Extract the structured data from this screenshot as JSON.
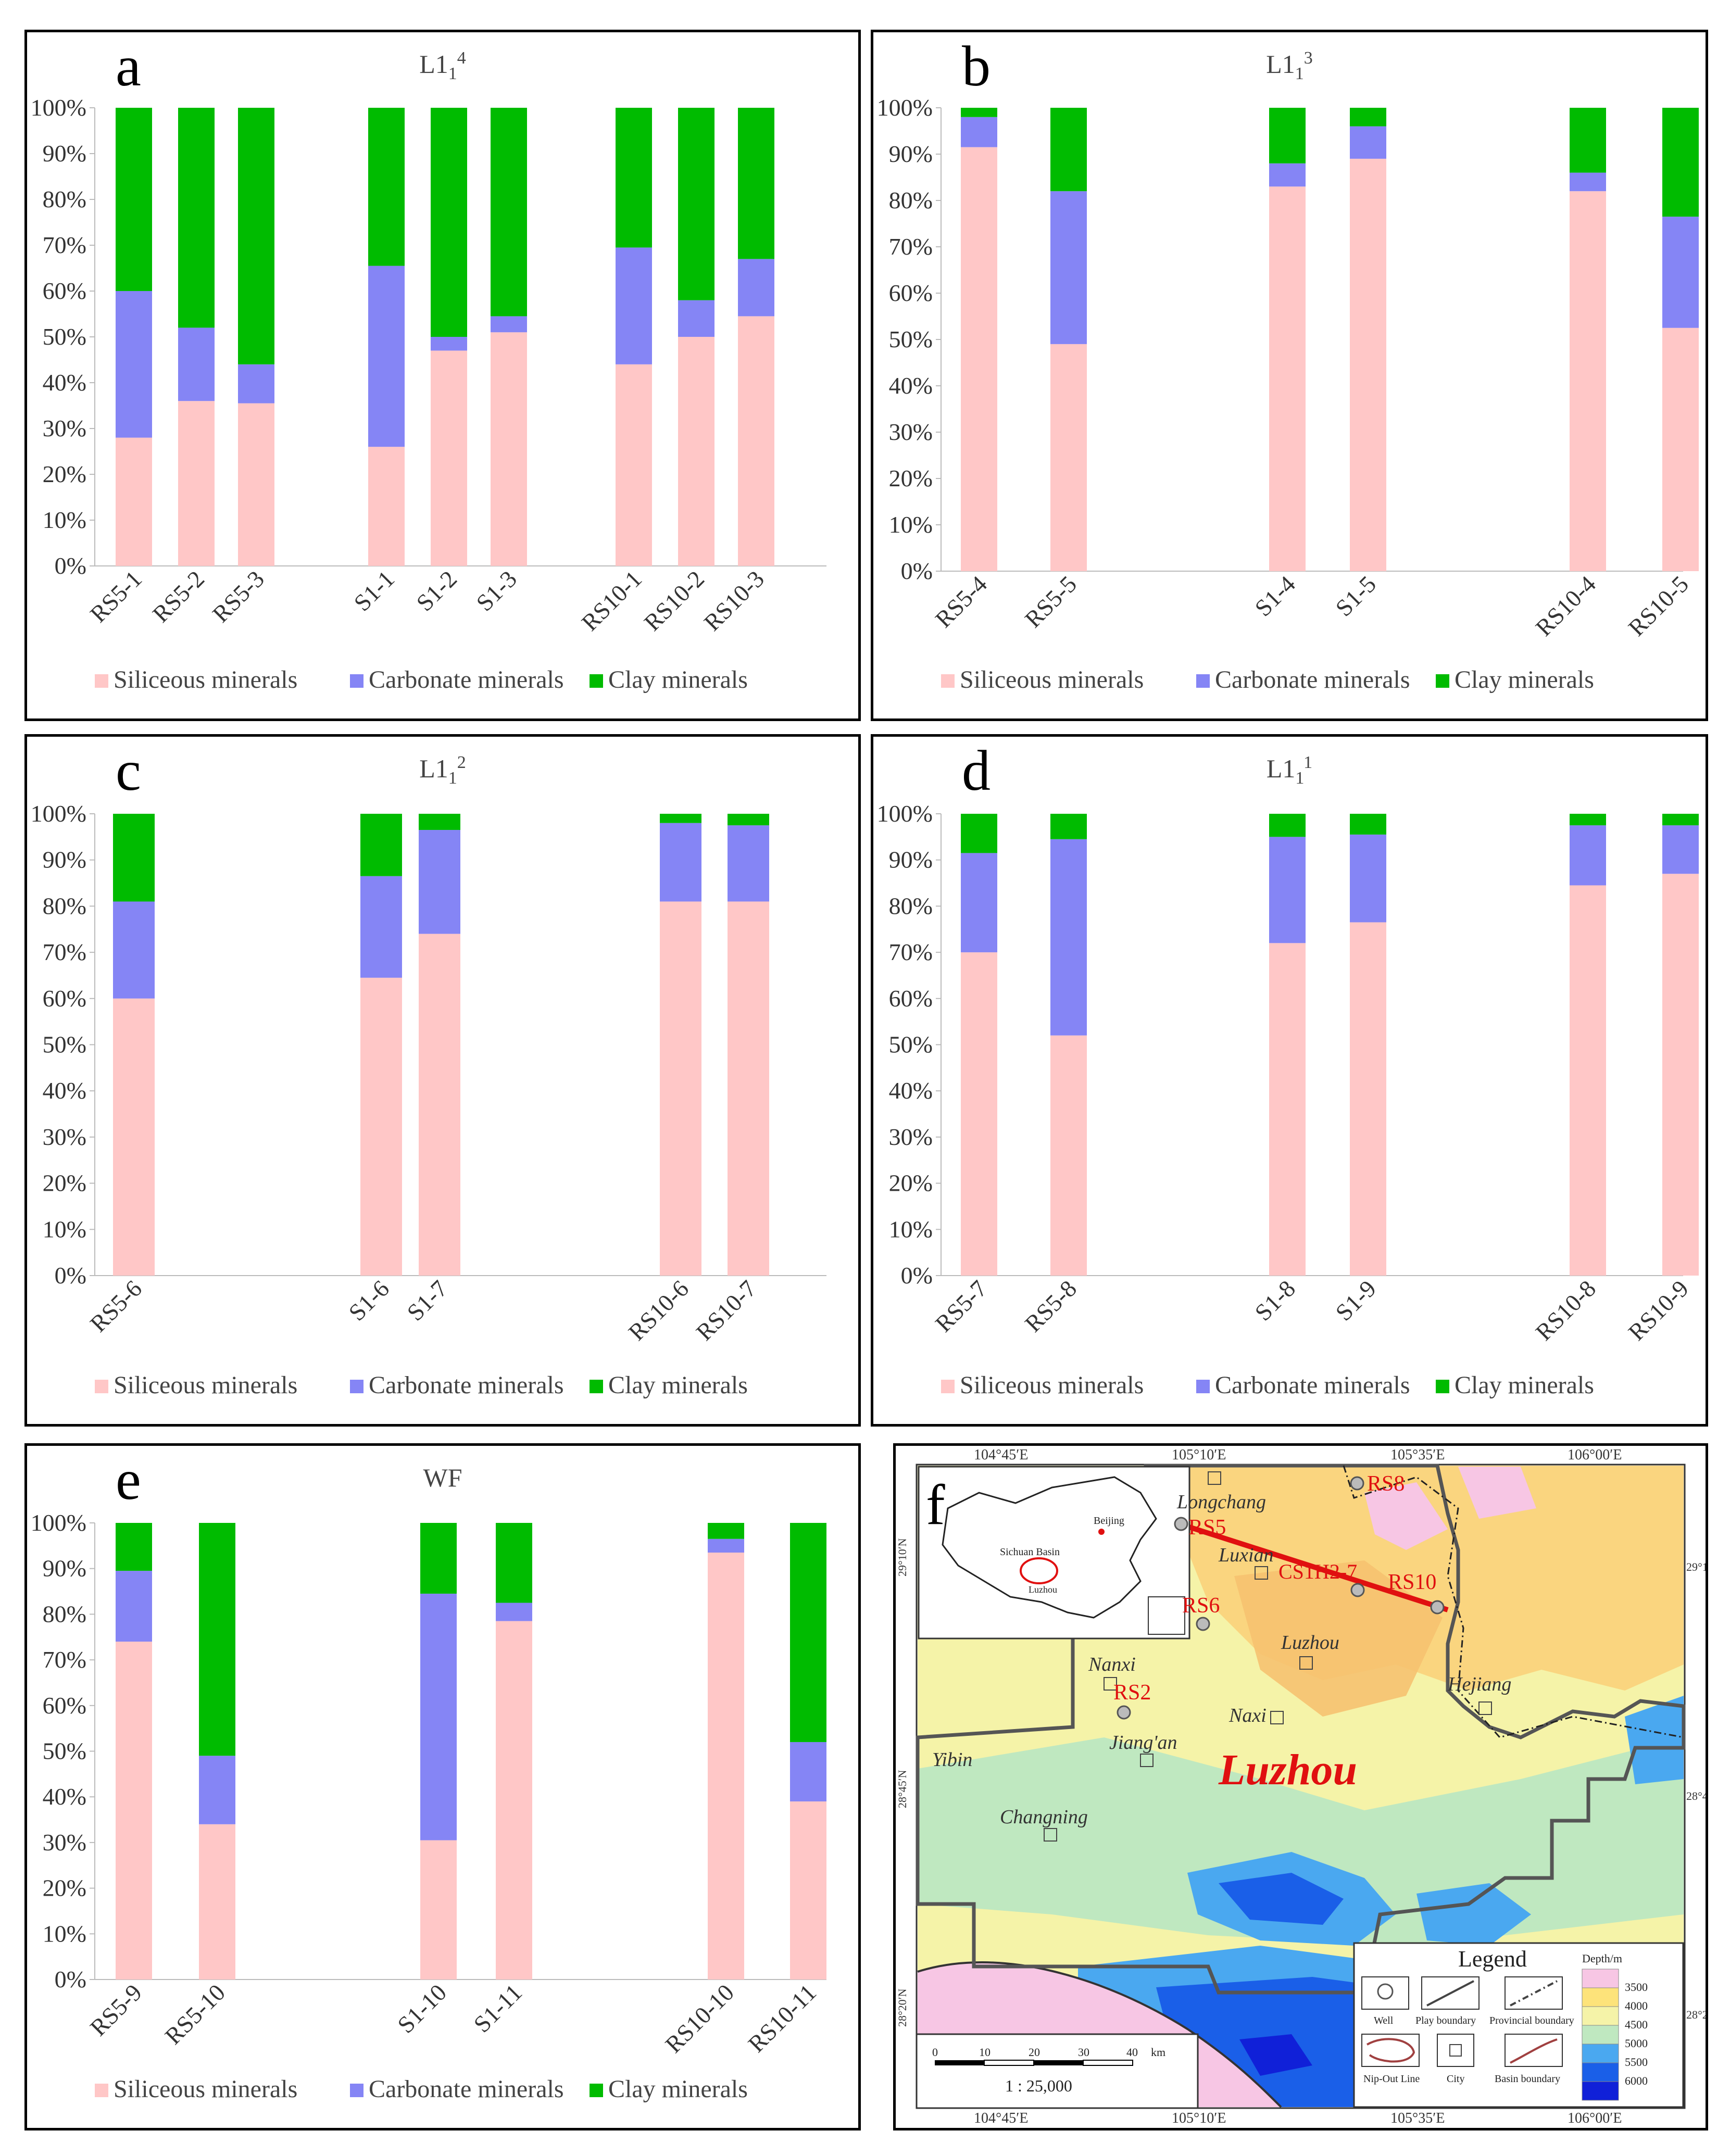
{
  "legend": {
    "siliceous": "Siliceous minerals",
    "carbonate": "Carbonate minerals",
    "clay": "Clay minerals"
  },
  "colors": {
    "siliceous": "#ffc7c7",
    "carbonate": "#8585f5",
    "clay": "#00bb00"
  },
  "chart_data": [
    {
      "type": "bar",
      "panel": "a",
      "title": "L1",
      "title_sub": "1",
      "title_sup": "4",
      "stacked": true,
      "ylim": [
        0,
        100
      ],
      "yticks": [
        "0%",
        "10%",
        "20%",
        "30%",
        "40%",
        "50%",
        "60%",
        "70%",
        "80%",
        "90%",
        "100%"
      ],
      "categories": [
        "RS5-1",
        "RS5-2",
        "RS5-3",
        "S1-1",
        "S1-2",
        "S1-3",
        "RS10-1",
        "RS10-2",
        "RS10-3"
      ],
      "series": [
        {
          "name": "Siliceous minerals",
          "values": [
            28,
            36,
            35.5,
            26,
            47,
            51,
            44,
            50,
            54.5
          ]
        },
        {
          "name": "Carbonate minerals",
          "values": [
            32,
            16,
            8.5,
            39.5,
            3,
            3.5,
            25.5,
            8,
            12.5
          ]
        },
        {
          "name": "Clay minerals",
          "values": [
            40,
            48,
            56,
            34.5,
            50,
            45.5,
            30.5,
            42,
            33
          ]
        }
      ]
    },
    {
      "type": "bar",
      "panel": "b",
      "title": "L1",
      "title_sub": "1",
      "title_sup": "3",
      "stacked": true,
      "ylim": [
        0,
        100
      ],
      "yticks": [
        "0%",
        "10%",
        "20%",
        "30%",
        "40%",
        "50%",
        "60%",
        "70%",
        "80%",
        "90%",
        "100%"
      ],
      "categories": [
        "RS5-4",
        "RS5-5",
        "S1-4",
        "S1-5",
        "RS10-4",
        "RS10-5"
      ],
      "series": [
        {
          "name": "Siliceous minerals",
          "values": [
            91.5,
            49,
            83,
            89,
            82,
            52.5
          ]
        },
        {
          "name": "Carbonate minerals",
          "values": [
            6.5,
            33,
            5,
            7,
            4,
            24
          ]
        },
        {
          "name": "Clay minerals",
          "values": [
            2,
            18,
            12,
            4,
            14,
            23.5
          ]
        }
      ]
    },
    {
      "type": "bar",
      "panel": "c",
      "title": "L1",
      "title_sub": "1",
      "title_sup": "2",
      "stacked": true,
      "ylim": [
        0,
        100
      ],
      "yticks": [
        "0%",
        "10%",
        "20%",
        "30%",
        "40%",
        "50%",
        "60%",
        "70%",
        "80%",
        "90%",
        "100%"
      ],
      "categories": [
        "RS5-6",
        "S1-6",
        "S1-7",
        "RS10-6",
        "RS10-7"
      ],
      "series": [
        {
          "name": "Siliceous minerals",
          "values": [
            60,
            64.5,
            74,
            81,
            81
          ]
        },
        {
          "name": "Carbonate minerals",
          "values": [
            21,
            22,
            22.5,
            17,
            16.5
          ]
        },
        {
          "name": "Clay minerals",
          "values": [
            19,
            13.5,
            3.5,
            2,
            2.5
          ]
        }
      ]
    },
    {
      "type": "bar",
      "panel": "d",
      "title": "L1",
      "title_sub": "1",
      "title_sup": "1",
      "stacked": true,
      "ylim": [
        0,
        100
      ],
      "yticks": [
        "0%",
        "10%",
        "20%",
        "30%",
        "40%",
        "50%",
        "60%",
        "70%",
        "80%",
        "90%",
        "100%"
      ],
      "categories": [
        "RS5-7",
        "RS5-8",
        "S1-8",
        "S1-9",
        "RS10-8",
        "RS10-9"
      ],
      "series": [
        {
          "name": "Siliceous minerals",
          "values": [
            70,
            52,
            72,
            76.5,
            84.5,
            87
          ]
        },
        {
          "name": "Carbonate minerals",
          "values": [
            21.5,
            42.5,
            23,
            19,
            13,
            10.5
          ]
        },
        {
          "name": "Clay minerals",
          "values": [
            8.5,
            5.5,
            5,
            4.5,
            2.5,
            2.5
          ]
        }
      ]
    },
    {
      "type": "bar",
      "panel": "e",
      "title": "WF",
      "title_sub": "",
      "title_sup": "",
      "stacked": true,
      "ylim": [
        0,
        100
      ],
      "yticks": [
        "0%",
        "10%",
        "20%",
        "30%",
        "40%",
        "50%",
        "60%",
        "70%",
        "80%",
        "90%",
        "100%"
      ],
      "categories": [
        "RS5-9",
        "RS5-10",
        "S1-10",
        "S1-11",
        "RS10-10",
        "RS10-11"
      ],
      "series": [
        {
          "name": "Siliceous minerals",
          "values": [
            74,
            34,
            30.5,
            78.5,
            93.5,
            39
          ]
        },
        {
          "name": "Carbonate minerals",
          "values": [
            15.5,
            15,
            54,
            4,
            3,
            13
          ]
        },
        {
          "name": "Clay minerals",
          "values": [
            10.5,
            51,
            15.5,
            17.5,
            3.5,
            48
          ]
        }
      ]
    }
  ],
  "map": {
    "letter": "f",
    "title": "Luzhou",
    "lon_top": [
      "104°45′E",
      "105°10′E",
      "105°35′E",
      "106°00′E"
    ],
    "lon_bottom": [
      "104°45′E",
      "105°10′E",
      "105°35′E",
      "106°00′E"
    ],
    "lat_left": [
      "29°10′N",
      "28°45′N",
      "28°20′N"
    ],
    "lat_right": [
      "29°10′",
      "28°45′",
      "28°20′"
    ],
    "cities": [
      "Longchang",
      "Luxian",
      "Luzhou",
      "Nanxi",
      "Naxi",
      "Hejiang",
      "Yibin",
      "Jiang'an",
      "Changning"
    ],
    "wells": [
      "RS5",
      "RS8",
      "RS6",
      "RS10",
      "RS2",
      "CS1H2-7"
    ],
    "inset": {
      "basin_label": "Sichuan Basin",
      "capital": "Beijing",
      "city": "Luzhou"
    },
    "scale": {
      "ticks": [
        "0",
        "10",
        "20",
        "30",
        "40"
      ],
      "unit": "km",
      "ratio": "1 : 25,000"
    },
    "legend": {
      "title": "Legend",
      "items": [
        "Well",
        "Play boundary",
        "Provincial boundary",
        "Nip-Out Line",
        "City",
        "Basin boundary"
      ],
      "depth_title": "Depth/m",
      "depth_values": [
        "3500",
        "4000",
        "4500",
        "5000",
        "5500",
        "6000"
      ],
      "depth_colors": [
        "#f7c6e4",
        "#fde37a",
        "#f5f3a8",
        "#bfe8c0",
        "#4aa8f0",
        "#1a5fe8",
        "#1020d8"
      ]
    }
  }
}
